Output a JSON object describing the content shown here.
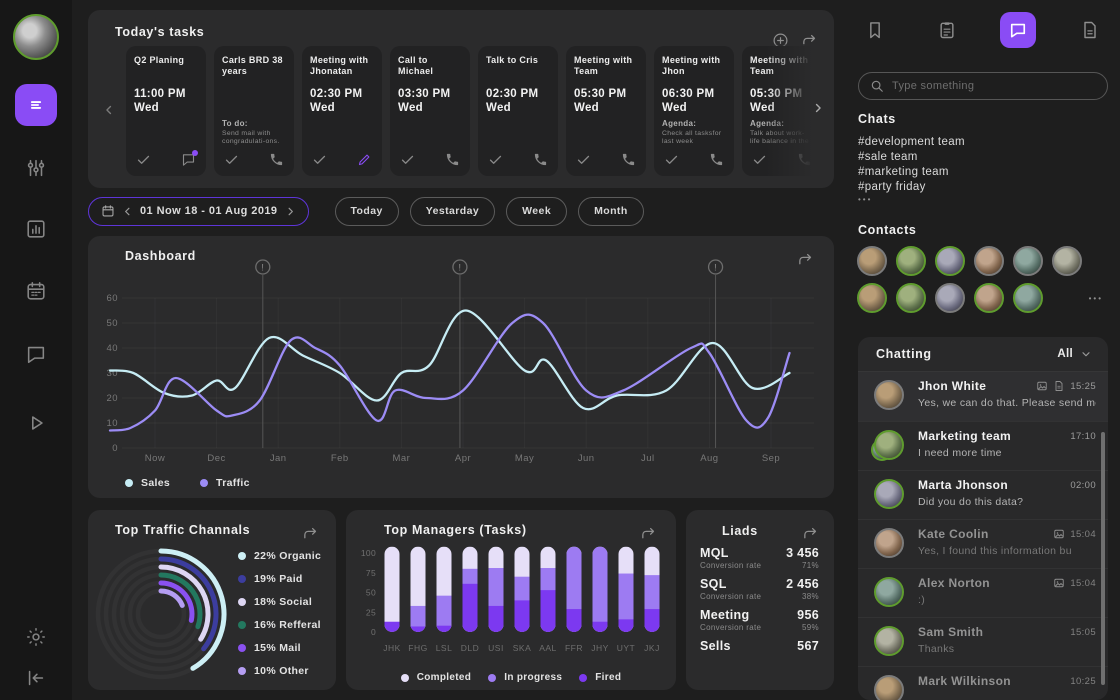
{
  "colors": {
    "accent": "#8a4cf5",
    "sales_line": "#c6ecf4",
    "traffic_line": "#9c8cf5",
    "online_ring": "#5f9c2e",
    "offline_ring": "#7b7b7b"
  },
  "tasks_panel": {
    "title": "Today's tasks",
    "cards": [
      {
        "title": "Q2 Planing",
        "time": "11:00 PM",
        "day": "Wed",
        "note_label": "",
        "note": "",
        "action": "chat",
        "action_accent": true
      },
      {
        "title": "Carls BRD 38 years",
        "time": "",
        "day": "",
        "note_label": "To do:",
        "note": "Send mail with congradulati-ons.",
        "action": "phone",
        "action_accent": false
      },
      {
        "title": "Meeting with Jhonatan",
        "time": "02:30 PM",
        "day": "Wed",
        "note_label": "",
        "note": "",
        "action": "pencil",
        "action_accent": true
      },
      {
        "title": "Call to Michael",
        "time": "03:30 PM",
        "day": "Wed",
        "note_label": "",
        "note": "",
        "action": "phone",
        "action_accent": false
      },
      {
        "title": "Talk to Cris",
        "time": "02:30 PM",
        "day": "Wed",
        "note_label": "",
        "note": "",
        "action": "phone",
        "action_accent": false
      },
      {
        "title": "Meeting with Team",
        "time": "05:30 PM",
        "day": "Wed",
        "note_label": "",
        "note": "",
        "action": "phone",
        "action_accent": false
      },
      {
        "title": "Meeting with Jhon",
        "time": "06:30 PM",
        "day": "Wed",
        "note_label": "Agenda:",
        "note": "Check all tasksfor last week",
        "action": "phone",
        "action_accent": false
      },
      {
        "title": "Meeting with Team",
        "time": "05:30 PM",
        "day": "Wed",
        "note_label": "Agenda:",
        "note": "Talk about work-life balance in the",
        "action": "phone",
        "action_accent": false
      }
    ]
  },
  "filters": {
    "date_range": "01 Now 18 - 01 Aug 2019",
    "buttons": [
      "Today",
      "Yestarday",
      "Week",
      "Month"
    ]
  },
  "dashboard": {
    "title": "Dashboard",
    "chart_data": {
      "type": "line",
      "x_labels": [
        "Now",
        "Dec",
        "Jan",
        "Feb",
        "Mar",
        "Apr",
        "May",
        "Jun",
        "Jul",
        "Aug",
        "Sep"
      ],
      "y_ticks": [
        0,
        10,
        20,
        30,
        40,
        50,
        60
      ],
      "ylim": [
        0,
        60
      ],
      "legend_position": "bottom-left",
      "markers_at_x": [
        1.75,
        4.95,
        9.1
      ],
      "series": [
        {
          "name": "Sales",
          "color": "#c6ecf4",
          "points": [
            [
              -0.73,
              31
            ],
            [
              -0.35,
              30
            ],
            [
              0.15,
              22
            ],
            [
              0.6,
              21
            ],
            [
              1.0,
              27
            ],
            [
              1.3,
              24
            ],
            [
              1.85,
              44
            ],
            [
              2.4,
              37
            ],
            [
              3.0,
              30
            ],
            [
              3.6,
              19
            ],
            [
              4.0,
              30
            ],
            [
              4.45,
              33
            ],
            [
              5.05,
              55
            ],
            [
              6.0,
              31
            ],
            [
              6.35,
              35
            ],
            [
              6.95,
              16
            ],
            [
              7.5,
              21
            ],
            [
              8.3,
              23
            ],
            [
              9.05,
              42
            ],
            [
              9.7,
              24
            ],
            [
              10.3,
              30
            ]
          ]
        },
        {
          "name": "Traffic",
          "color": "#9c8cf5",
          "points": [
            [
              -0.73,
              7
            ],
            [
              -0.4,
              8
            ],
            [
              0.0,
              15
            ],
            [
              0.34,
              28
            ],
            [
              1.0,
              15
            ],
            [
              1.25,
              13
            ],
            [
              1.7,
              19
            ],
            [
              2.2,
              43
            ],
            [
              2.6,
              40
            ],
            [
              3.0,
              33
            ],
            [
              3.6,
              11
            ],
            [
              3.9,
              23
            ],
            [
              4.4,
              20
            ],
            [
              5.0,
              23
            ],
            [
              5.8,
              50
            ],
            [
              6.3,
              50
            ],
            [
              7.0,
              23
            ],
            [
              7.6,
              23
            ],
            [
              8.7,
              40
            ],
            [
              9.0,
              38
            ],
            [
              9.6,
              11
            ],
            [
              9.95,
              12
            ],
            [
              10.3,
              38
            ]
          ]
        }
      ]
    }
  },
  "traffic_panel": {
    "title": "Top Traffic Channals",
    "chart_data": {
      "type": "radial-bar",
      "items": [
        {
          "label": "22% Organic",
          "pct": 22,
          "color": "#cdeff5"
        },
        {
          "label": "19% Paid",
          "pct": 19,
          "color": "#3c3d9e"
        },
        {
          "label": "18% Social",
          "pct": 18,
          "color": "#ddd6f3"
        },
        {
          "label": "16% Refferal",
          "pct": 16,
          "color": "#23785f"
        },
        {
          "label": "15% Mail",
          "pct": 15,
          "color": "#8a51f0"
        },
        {
          "label": "10% Other",
          "pct": 10,
          "color": "#b49df2"
        }
      ]
    }
  },
  "managers_panel": {
    "title": "Top Managers (Tasks)",
    "chart_data": {
      "type": "stacked-bar",
      "categories": [
        "JHK",
        "FHG",
        "LSL",
        "DLD",
        "USI",
        "SKA",
        "AAL",
        "FFR",
        "JHY",
        "UYT",
        "JKJ"
      ],
      "y_ticks": [
        0,
        25,
        50,
        75,
        100
      ],
      "bar_total": 108,
      "series": [
        {
          "name": "Fired",
          "color": "#7c39f0",
          "values": [
            13,
            7,
            8,
            61,
            33,
            40,
            53,
            29,
            13,
            16,
            29
          ]
        },
        {
          "name": "In progress",
          "color": "#9d7bf2",
          "values": [
            0,
            26,
            38,
            19,
            48,
            30,
            28,
            79,
            95,
            58,
            43
          ]
        },
        {
          "name": "Completed",
          "color": "#e6dff8",
          "values": [
            95,
            75,
            62,
            28,
            27,
            38,
            27,
            0,
            0,
            34,
            36
          ]
        }
      ],
      "legend_order": [
        "Completed",
        "In progress",
        "Fired"
      ]
    }
  },
  "leads_panel": {
    "title": "Liads",
    "rows": [
      {
        "name": "MQL",
        "value": "3 456",
        "rate_label": "Conversion rate",
        "rate": "71%"
      },
      {
        "name": "SQL",
        "value": "2 456",
        "rate_label": "Conversion rate",
        "rate": "38%"
      },
      {
        "name": "Meeting",
        "value": "956",
        "rate_label": "Conversion rate",
        "rate": "59%"
      },
      {
        "name": "Sells",
        "value": "567",
        "rate_label": "",
        "rate": ""
      }
    ]
  },
  "right_panel": {
    "search_placeholder": "Type something",
    "chats_title": "Chats",
    "channels": [
      "#development team",
      "#sale team",
      "#marketing team",
      "#party friday"
    ],
    "more_label": "•••",
    "contacts_title": "Contacts",
    "contacts_online": [
      false,
      true,
      true,
      false,
      false,
      false,
      true,
      true,
      false,
      true,
      true
    ],
    "chatting": {
      "title": "Chatting",
      "filter_label": "All",
      "messages": [
        {
          "name": "Jhon White",
          "time": "15:25",
          "text": "Yes, we can do that. Please send me",
          "icons": [
            "image",
            "doc"
          ],
          "online": false,
          "highlight": true,
          "read": false,
          "group": false
        },
        {
          "name": "Marketing team",
          "time": "17:10",
          "text": "I need more time",
          "icons": [],
          "online": true,
          "highlight": false,
          "read": false,
          "group": true
        },
        {
          "name": "Marta Jhonson",
          "time": "02:00",
          "text": "Did you do this data?",
          "icons": [],
          "online": true,
          "highlight": false,
          "read": false,
          "group": false
        },
        {
          "name": "Kate Coolin",
          "time": "15:04",
          "text": "Yes, I found this information bu",
          "icons": [
            "image"
          ],
          "online": false,
          "highlight": false,
          "read": true,
          "group": false
        },
        {
          "name": "Alex Norton",
          "time": "15:04",
          "text": ":)",
          "icons": [
            "image"
          ],
          "online": true,
          "highlight": false,
          "read": true,
          "group": false
        },
        {
          "name": "Sam Smith",
          "time": "15:05",
          "text": "Thanks",
          "icons": [],
          "online": true,
          "highlight": false,
          "read": true,
          "group": false
        },
        {
          "name": "Mark Wilkinson",
          "time": "10:25",
          "text": "",
          "icons": [],
          "online": false,
          "highlight": false,
          "read": true,
          "group": false
        }
      ]
    }
  }
}
